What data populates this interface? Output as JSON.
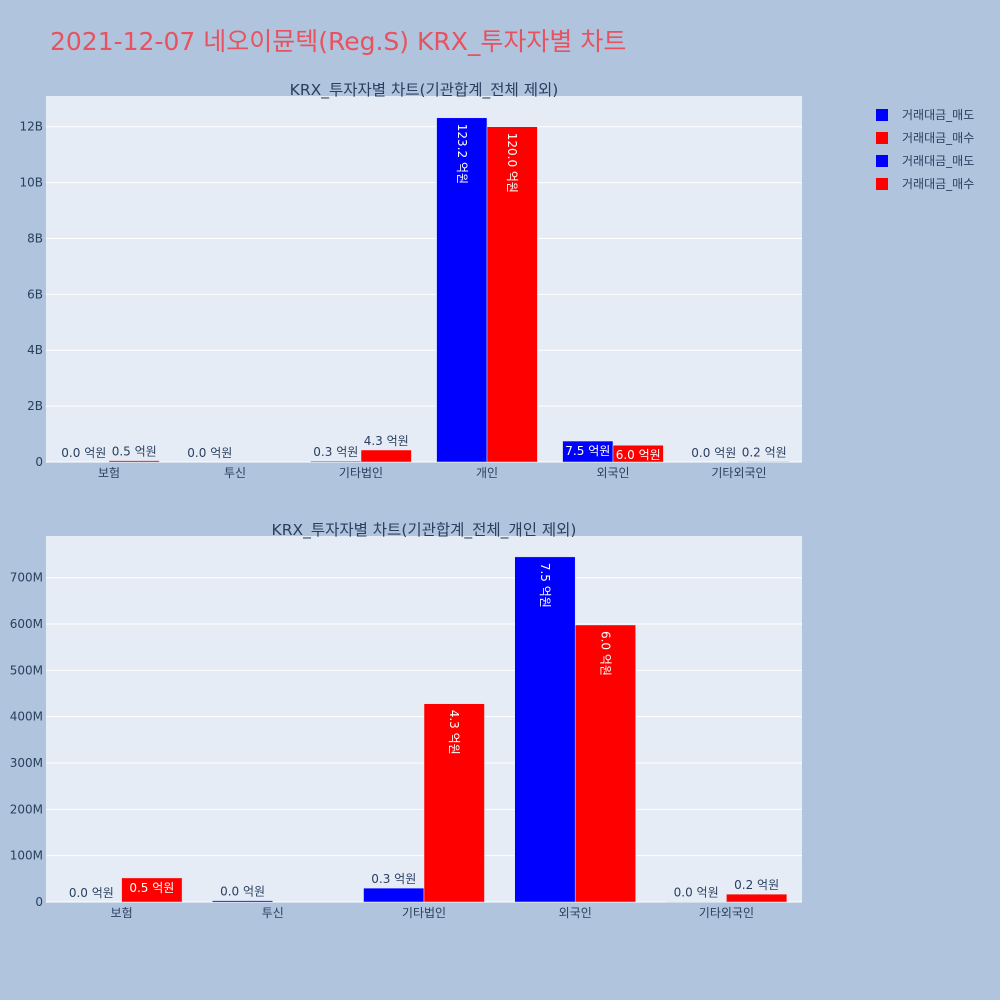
{
  "page": {
    "title": "2021-12-07 네오이뮨텍(Reg.S) KRX_투자자별 차트",
    "background": "#b0c4de",
    "title_color": "#e8525f"
  },
  "legend": {
    "items": [
      {
        "label": "거래대금_매도",
        "color": "#0000ff"
      },
      {
        "label": "거래대금_매수",
        "color": "#ff0000"
      },
      {
        "label": "거래대금_매도",
        "color": "#0000ff"
      },
      {
        "label": "거래대금_매수",
        "color": "#ff0000"
      }
    ]
  },
  "chart_data": [
    {
      "type": "bar",
      "title": "KRX_투자자별 차트(기관합계_전체 제외)",
      "categories": [
        "보험",
        "투신",
        "기타법인",
        "개인",
        "외국인",
        "기타외국인"
      ],
      "series": [
        {
          "name": "거래대금_매도",
          "color": "#0000ff",
          "values": [
            0,
            0,
            30000000,
            12320000000,
            750000000,
            0
          ],
          "labels": [
            "0.0 억원",
            "0.0 억원",
            "0.3 억원",
            "123.2 억원",
            "7.5 억원",
            "0.0 억원"
          ]
        },
        {
          "name": "거래대금_매수",
          "color": "#ff0000",
          "values": [
            50000000,
            0,
            430000000,
            12000000000,
            600000000,
            20000000
          ],
          "labels": [
            "0.5 억원",
            "",
            "4.3 억원",
            "120.0 억원",
            "6.0 억원",
            "0.2 억원"
          ]
        }
      ],
      "yticks": [
        0,
        2000000000,
        4000000000,
        6000000000,
        8000000000,
        10000000000,
        12000000000
      ],
      "ytick_labels": [
        "0",
        "2B",
        "4B",
        "6B",
        "8B",
        "10B",
        "12B"
      ],
      "ylim": [
        0,
        13100000000
      ],
      "grid": true
    },
    {
      "type": "bar",
      "title": "KRX_투자자별 차트(기관합계_전체_개인 제외)",
      "categories": [
        "보험",
        "투신",
        "기타법인",
        "외국인",
        "기타외국인"
      ],
      "series": [
        {
          "name": "거래대금_매도",
          "color": "#0000ff",
          "values": [
            0,
            3000000,
            30000000,
            745000000,
            1000000
          ],
          "labels": [
            "0.0 억원",
            "0.0 억원",
            "0.3 억원",
            "7.5 억원",
            "0.0 억원"
          ]
        },
        {
          "name": "거래대금_매수",
          "color": "#ff0000",
          "values": [
            52000000,
            0,
            428000000,
            598000000,
            17000000
          ],
          "labels": [
            "0.5 억원",
            "",
            "4.3 억원",
            "6.0 억원",
            "0.2 억원"
          ]
        }
      ],
      "yticks": [
        0,
        100000000,
        200000000,
        300000000,
        400000000,
        500000000,
        600000000,
        700000000
      ],
      "ytick_labels": [
        "0",
        "100M",
        "200M",
        "300M",
        "400M",
        "500M",
        "600M",
        "700M"
      ],
      "ylim": [
        0,
        790000000
      ],
      "grid": true
    }
  ]
}
